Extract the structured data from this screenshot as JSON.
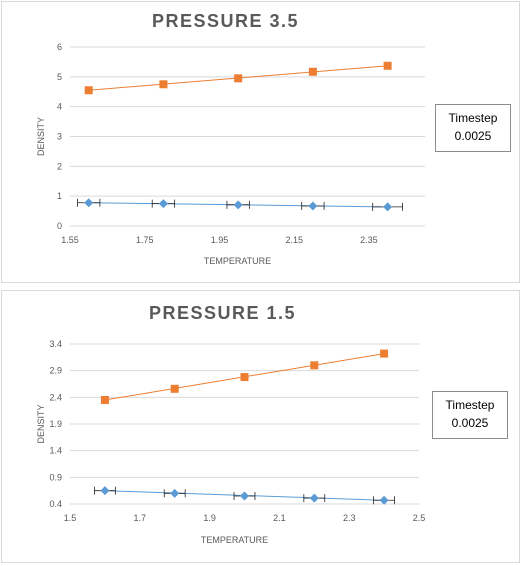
{
  "chart_data": [
    {
      "type": "scatter",
      "title": "PRESSURE 3.5",
      "xlabel": "TEMPERATURE",
      "ylabel": "DENSITY",
      "xlim": [
        1.55,
        2.5
      ],
      "ylim": [
        0,
        6
      ],
      "xticks": [
        1.55,
        1.75,
        1.95,
        2.15,
        2.35
      ],
      "xtick_labels": [
        "1.55",
        "1.75",
        "1.95",
        "2.15",
        "2.35"
      ],
      "yticks": [
        0,
        1,
        2,
        3,
        4,
        5,
        6
      ],
      "ytick_labels": [
        "0",
        "1",
        "2",
        "3",
        "4",
        "5",
        "6"
      ],
      "grid": true,
      "legend": {
        "title": "Timestep",
        "value": "0.0025",
        "placement": "right"
      },
      "series": [
        {
          "color": "#ed7d31",
          "marker": "square",
          "x": [
            1.6,
            1.8,
            2.0,
            2.2,
            2.4
          ],
          "y": [
            4.55,
            4.75,
            4.95,
            5.17,
            5.37
          ],
          "xerr": [
            0,
            0,
            0,
            0,
            0
          ]
        },
        {
          "color": "#5b9bd5",
          "marker": "diamond",
          "x": [
            1.6,
            1.8,
            2.0,
            2.2,
            2.4
          ],
          "y": [
            0.78,
            0.75,
            0.71,
            0.67,
            0.64
          ],
          "xerr": [
            0.03,
            0.03,
            0.03,
            0.03,
            0.04
          ]
        }
      ]
    },
    {
      "type": "scatter",
      "title": "PRESSURE 1.5",
      "xlabel": "TEMPERATURE",
      "ylabel": "DENSITY",
      "xlim": [
        1.5,
        2.5
      ],
      "ylim": [
        0.4,
        3.4
      ],
      "xticks": [
        1.5,
        1.7,
        1.9,
        2.1,
        2.3,
        2.5
      ],
      "xtick_labels": [
        "1.5",
        "1.7",
        "1.9",
        "2.1",
        "2.3",
        "2.5"
      ],
      "yticks": [
        0.4,
        0.9,
        1.4,
        1.9,
        2.4,
        2.9,
        3.4
      ],
      "ytick_labels": [
        "0.4",
        "0.9",
        "1.4",
        "1.9",
        "2.4",
        "2.9",
        "3.4"
      ],
      "grid": true,
      "legend": {
        "title": "Timestep",
        "value": "0.0025",
        "placement": "right"
      },
      "series": [
        {
          "color": "#ed7d31",
          "marker": "square",
          "x": [
            1.6,
            1.8,
            2.0,
            2.2,
            2.4
          ],
          "y": [
            2.35,
            2.56,
            2.78,
            3.0,
            3.22
          ],
          "xerr": [
            0,
            0,
            0,
            0,
            0
          ]
        },
        {
          "color": "#5b9bd5",
          "marker": "diamond",
          "x": [
            1.6,
            1.8,
            2.0,
            2.2,
            2.4
          ],
          "y": [
            0.65,
            0.6,
            0.55,
            0.51,
            0.47
          ],
          "xerr": [
            0.03,
            0.03,
            0.03,
            0.03,
            0.03
          ]
        }
      ]
    }
  ]
}
